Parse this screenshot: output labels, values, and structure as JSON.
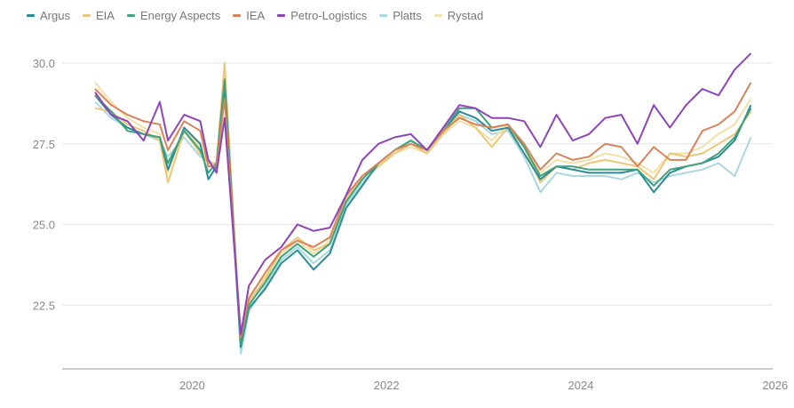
{
  "chart_data": {
    "type": "line",
    "title": "",
    "xlabel": "",
    "ylabel": "",
    "ylim": [
      20.5,
      30.5
    ],
    "xlim": [
      "2019-01",
      "2026-01"
    ],
    "yticks": [
      "22.5",
      "25.0",
      "27.5",
      "30.0"
    ],
    "xticks": [
      "2020",
      "2022",
      "2024",
      "2026"
    ],
    "grid": "horizontal",
    "legend": "top-left",
    "x": [
      "2019-01",
      "2019-03",
      "2019-05",
      "2019-07",
      "2019-09",
      "2019-10",
      "2019-12",
      "2020-02",
      "2020-03",
      "2020-04",
      "2020-05",
      "2020-07",
      "2020-08",
      "2020-10",
      "2020-12",
      "2021-02",
      "2021-04",
      "2021-06",
      "2021-08",
      "2021-10",
      "2021-12",
      "2022-02",
      "2022-04",
      "2022-06",
      "2022-08",
      "2022-10",
      "2022-12",
      "2023-02",
      "2023-04",
      "2023-06",
      "2023-08",
      "2023-10",
      "2023-12",
      "2024-02",
      "2024-04",
      "2024-06",
      "2024-08",
      "2024-10",
      "2024-12",
      "2025-02",
      "2025-04",
      "2025-06",
      "2025-08",
      "2025-10"
    ],
    "series": [
      {
        "name": "Argus",
        "color": "#2a8a96",
        "values": [
          29.0,
          28.4,
          28.0,
          27.8,
          27.7,
          26.7,
          28.0,
          27.5,
          26.4,
          26.8,
          29.2,
          21.2,
          22.4,
          23.0,
          23.8,
          24.2,
          23.6,
          24.1,
          25.5,
          26.2,
          26.9,
          27.3,
          27.6,
          27.3,
          27.9,
          28.5,
          28.3,
          27.9,
          28.0,
          27.2,
          26.4,
          26.8,
          26.7,
          26.6,
          26.6,
          26.6,
          26.7,
          26.0,
          26.6,
          26.8,
          26.9,
          27.1,
          27.6,
          28.7
        ]
      },
      {
        "name": "EIA",
        "color": "#f0c674",
        "values": [
          28.6,
          28.5,
          28.1,
          27.9,
          27.6,
          26.3,
          27.9,
          27.2,
          26.9,
          26.9,
          30.0,
          21.3,
          22.6,
          23.3,
          24.2,
          24.6,
          24.2,
          24.4,
          25.8,
          26.5,
          26.8,
          27.2,
          27.5,
          27.2,
          27.8,
          28.4,
          28.0,
          27.4,
          28.0,
          27.4,
          26.3,
          26.8,
          26.7,
          26.9,
          27.0,
          26.9,
          26.8,
          26.4,
          27.2,
          27.1,
          27.2,
          27.5,
          27.8,
          28.5
        ]
      },
      {
        "name": "Energy Aspects",
        "color": "#3fa27a",
        "values": [
          29.0,
          28.5,
          27.9,
          27.8,
          27.7,
          26.9,
          27.9,
          27.3,
          26.6,
          26.9,
          29.5,
          21.3,
          22.5,
          23.2,
          24.0,
          24.4,
          24.0,
          24.4,
          25.7,
          26.4,
          26.9,
          27.3,
          27.6,
          27.3,
          27.9,
          28.6,
          28.6,
          28.0,
          28.1,
          27.4,
          26.5,
          26.8,
          26.8,
          26.7,
          26.7,
          26.7,
          26.7,
          26.2,
          26.7,
          26.8,
          26.9,
          27.2,
          27.7,
          28.6
        ]
      },
      {
        "name": "IEA",
        "color": "#d9835a",
        "values": [
          29.2,
          28.7,
          28.4,
          28.2,
          28.1,
          27.3,
          28.2,
          27.9,
          26.8,
          26.8,
          28.9,
          21.5,
          22.7,
          23.5,
          24.2,
          24.5,
          24.3,
          24.6,
          25.9,
          26.5,
          26.9,
          27.3,
          27.5,
          27.3,
          27.9,
          28.3,
          28.1,
          28.0,
          28.1,
          27.5,
          26.7,
          27.2,
          27.0,
          27.1,
          27.5,
          27.4,
          26.8,
          27.4,
          27.0,
          27.0,
          27.9,
          28.1,
          28.5,
          29.4
        ]
      },
      {
        "name": "Petro-Logistics",
        "color": "#8e44b8",
        "values": [
          29.1,
          28.4,
          28.2,
          27.6,
          28.8,
          27.6,
          28.4,
          28.2,
          27.0,
          26.6,
          28.3,
          21.6,
          23.1,
          23.9,
          24.3,
          25.0,
          24.8,
          24.9,
          25.9,
          27.0,
          27.5,
          27.7,
          27.8,
          27.3,
          28.0,
          28.7,
          28.6,
          28.3,
          28.3,
          28.2,
          27.4,
          28.4,
          27.6,
          27.8,
          28.3,
          28.4,
          27.5,
          28.7,
          28.0,
          28.7,
          29.2,
          29.0,
          29.8,
          30.3
        ]
      },
      {
        "name": "Platts",
        "color": "#a8d8e0",
        "values": [
          28.8,
          28.3,
          28.0,
          27.8,
          27.6,
          27.1,
          27.7,
          27.1,
          27.0,
          26.8,
          29.3,
          21.0,
          22.3,
          23.1,
          23.9,
          24.3,
          23.8,
          24.2,
          25.6,
          26.3,
          26.8,
          27.2,
          27.5,
          27.2,
          27.8,
          28.4,
          28.2,
          27.8,
          27.9,
          27.1,
          26.0,
          26.6,
          26.5,
          26.5,
          26.5,
          26.4,
          26.6,
          26.3,
          26.5,
          26.6,
          26.7,
          26.9,
          26.5,
          27.7
        ]
      },
      {
        "name": "Rystad",
        "color": "#f3e0a8",
        "values": [
          29.4,
          28.8,
          28.3,
          28.0,
          27.8,
          26.6,
          28.0,
          27.4,
          26.9,
          26.9,
          29.8,
          21.4,
          22.8,
          23.4,
          24.1,
          24.5,
          24.1,
          24.5,
          25.8,
          26.5,
          26.9,
          27.2,
          27.4,
          27.2,
          27.8,
          28.2,
          28.0,
          27.6,
          28.1,
          27.4,
          26.6,
          27.0,
          26.9,
          27.0,
          27.2,
          27.1,
          26.9,
          26.6,
          27.2,
          27.2,
          27.4,
          27.8,
          28.1,
          28.9
        ]
      }
    ]
  }
}
